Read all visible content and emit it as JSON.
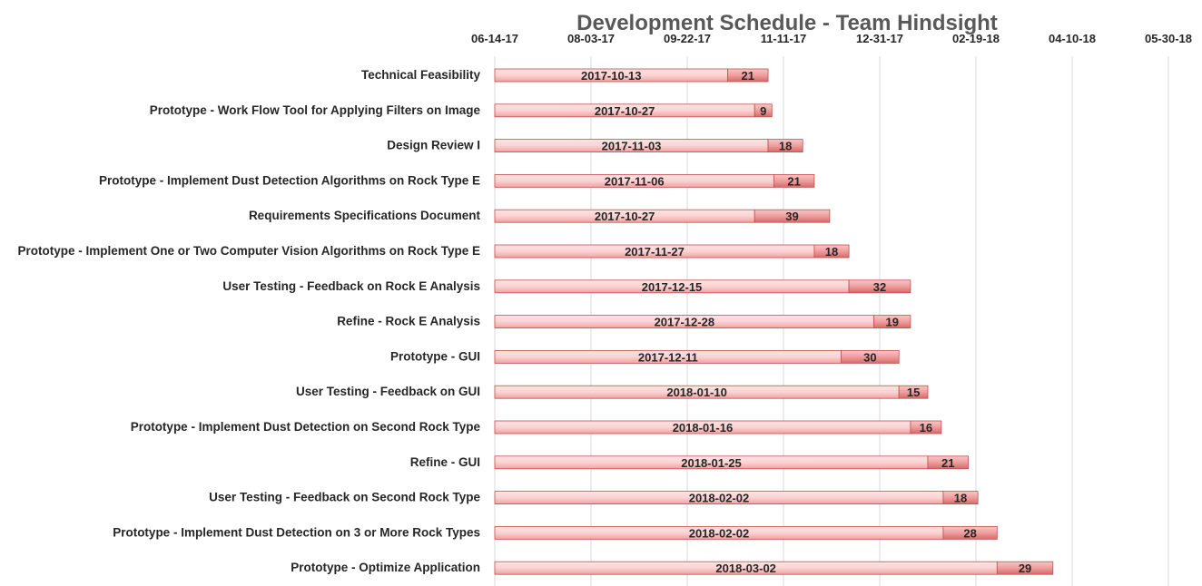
{
  "chart_data": {
    "type": "bar",
    "orientation": "horizontal",
    "stacked": true,
    "title": "Development Schedule - Team Hindsight",
    "x_axis": {
      "position": "top",
      "scale": "date",
      "min": "2017-06-14",
      "max": "2018-05-30",
      "tick_labels": [
        "06-14-17",
        "08-03-17",
        "09-22-17",
        "11-11-17",
        "12-31-17",
        "02-19-18",
        "04-10-18",
        "05-30-18"
      ]
    },
    "grid": true,
    "legend": "none",
    "colors": {
      "start_fill_light": "#fde3e3",
      "start_fill_dark": "#f1a0a0",
      "duration_fill_light": "#f8c6c6",
      "duration_fill_dark": "#d46a6a",
      "bar_edge": "#c0504d"
    },
    "tasks": [
      {
        "name": "Technical Feasibility",
        "start": "2017-10-13",
        "duration": 21
      },
      {
        "name": "Prototype - Work Flow Tool for Applying Filters on Image",
        "start": "2017-10-27",
        "duration": 9
      },
      {
        "name": "Design Review I",
        "start": "2017-11-03",
        "duration": 18
      },
      {
        "name": "Prototype - Implement Dust Detection Algorithms on Rock Type E",
        "start": "2017-11-06",
        "duration": 21
      },
      {
        "name": "Requirements Specifications Document",
        "start": "2017-10-27",
        "duration": 39
      },
      {
        "name": "Prototype - Implement One or Two Computer Vision Algorithms on Rock Type E",
        "start": "2017-11-27",
        "duration": 18
      },
      {
        "name": "User Testing - Feedback on Rock E Analysis",
        "start": "2017-12-15",
        "duration": 32
      },
      {
        "name": "Refine - Rock E Analysis",
        "start": "2017-12-28",
        "duration": 19
      },
      {
        "name": "Prototype - GUI",
        "start": "2017-12-11",
        "duration": 30
      },
      {
        "name": "User Testing - Feedback on GUI",
        "start": "2018-01-10",
        "duration": 15
      },
      {
        "name": "Prototype - Implement Dust Detection on Second Rock Type",
        "start": "2018-01-16",
        "duration": 16
      },
      {
        "name": "Refine - GUI",
        "start": "2018-01-25",
        "duration": 21
      },
      {
        "name": "User Testing - Feedback on Second Rock Type",
        "start": "2018-02-02",
        "duration": 18
      },
      {
        "name": "Prototype - Implement Dust Detection on 3 or More Rock Types",
        "start": "2018-02-02",
        "duration": 28
      },
      {
        "name": "Prototype - Optimize Application",
        "start": "2018-03-02",
        "duration": 29
      }
    ]
  }
}
